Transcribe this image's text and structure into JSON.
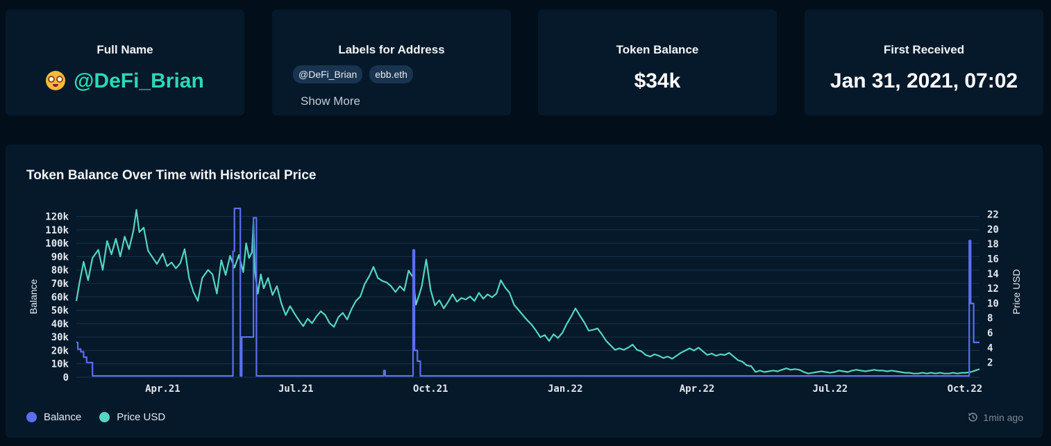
{
  "cards": {
    "full_name": {
      "title": "Full Name",
      "value": "@DeFi_Brian",
      "icon": "nerd-face-emoji-icon"
    },
    "labels": {
      "title": "Labels for Address",
      "pills": [
        "@DeFi_Brian",
        "ebb.eth"
      ],
      "show_more": "Show More"
    },
    "token_balance": {
      "title": "Token Balance",
      "value": "$34k"
    },
    "first_received": {
      "title": "First Received",
      "value": "Jan 31, 2021, 07:02"
    }
  },
  "chart_title": "Token Balance Over Time with Historical Price",
  "legend": {
    "balance": "Balance",
    "price": "Price USD"
  },
  "updated": "1min ago",
  "colors": {
    "balance": "#5b6ff0",
    "price": "#55d6c2",
    "accent": "#2bd9b7",
    "panel": "#06192a",
    "background": "#020f1b"
  },
  "chart_data": {
    "type": "line",
    "xlabel": "",
    "ylabel_left": "Balance",
    "ylabel_right": "Price USD",
    "x_ticks": [
      "Apr.21",
      "Jul.21",
      "Oct.21",
      "Jan.22",
      "Apr.22",
      "Jul.22",
      "Oct.22"
    ],
    "y_left_ticks": [
      "0",
      "10k",
      "20k",
      "30k",
      "40k",
      "50k",
      "60k",
      "70k",
      "80k",
      "90k",
      "100k",
      "110k",
      "120k"
    ],
    "y_right_ticks": [
      "2",
      "4",
      "6",
      "8",
      "10",
      "12",
      "14",
      "16",
      "18",
      "20",
      "22"
    ],
    "ylim_left": [
      0,
      126000
    ],
    "ylim_right": [
      0,
      22.8
    ],
    "grid": true,
    "series": [
      {
        "name": "Balance",
        "axis": "left",
        "step": true,
        "points": [
          [
            "2021-02-01",
            26000
          ],
          [
            "2021-02-02",
            21000
          ],
          [
            "2021-02-04",
            19000
          ],
          [
            "2021-02-06",
            15000
          ],
          [
            "2021-02-08",
            11000
          ],
          [
            "2021-02-11",
            11000
          ],
          [
            "2021-02-12",
            1000
          ],
          [
            "2021-05-18",
            1000
          ],
          [
            "2021-05-19",
            94000
          ],
          [
            "2021-05-20",
            126000
          ],
          [
            "2021-05-23",
            126000
          ],
          [
            "2021-05-24",
            1000
          ],
          [
            "2021-05-25",
            30000
          ],
          [
            "2021-06-01",
            30000
          ],
          [
            "2021-06-02",
            119000
          ],
          [
            "2021-06-03",
            119000
          ],
          [
            "2021-06-04",
            1000
          ],
          [
            "2021-08-29",
            1000
          ],
          [
            "2021-08-30",
            5000
          ],
          [
            "2021-08-31",
            1000
          ],
          [
            "2021-09-18",
            1000
          ],
          [
            "2021-09-19",
            95000
          ],
          [
            "2021-09-20",
            20000
          ],
          [
            "2021-09-22",
            12000
          ],
          [
            "2021-09-24",
            1000
          ],
          [
            "2022-10-03",
            1000
          ],
          [
            "2022-10-04",
            102000
          ],
          [
            "2022-10-05",
            55000
          ],
          [
            "2022-10-07",
            26000
          ],
          [
            "2022-10-11",
            26000
          ]
        ]
      },
      {
        "name": "Price USD",
        "axis": "right",
        "points": [
          [
            "2021-02-01",
            10.3
          ],
          [
            "2021-02-03",
            12.6
          ],
          [
            "2021-02-06",
            15.6
          ],
          [
            "2021-02-09",
            13.1
          ],
          [
            "2021-02-12",
            16.1
          ],
          [
            "2021-02-16",
            17.2
          ],
          [
            "2021-02-19",
            14.5
          ],
          [
            "2021-02-22",
            18.4
          ],
          [
            "2021-02-25",
            16.6
          ],
          [
            "2021-02-28",
            18.7
          ],
          [
            "2021-03-03",
            16.3
          ],
          [
            "2021-03-06",
            19.0
          ],
          [
            "2021-03-09",
            17.3
          ],
          [
            "2021-03-12",
            19.8
          ],
          [
            "2021-03-14",
            22.6
          ],
          [
            "2021-03-16",
            19.6
          ],
          [
            "2021-03-19",
            20.2
          ],
          [
            "2021-03-22",
            17.1
          ],
          [
            "2021-03-25",
            16.2
          ],
          [
            "2021-03-28",
            15.3
          ],
          [
            "2021-04-01",
            16.7
          ],
          [
            "2021-04-04",
            15.0
          ],
          [
            "2021-04-07",
            15.5
          ],
          [
            "2021-04-10",
            14.7
          ],
          [
            "2021-04-13",
            15.4
          ],
          [
            "2021-04-16",
            17.3
          ],
          [
            "2021-04-19",
            13.4
          ],
          [
            "2021-04-22",
            11.5
          ],
          [
            "2021-04-25",
            10.3
          ],
          [
            "2021-04-28",
            13.4
          ],
          [
            "2021-05-02",
            14.5
          ],
          [
            "2021-05-05",
            13.9
          ],
          [
            "2021-05-08",
            11.3
          ],
          [
            "2021-05-11",
            15.8
          ],
          [
            "2021-05-14",
            13.8
          ],
          [
            "2021-05-17",
            16.4
          ],
          [
            "2021-05-20",
            14.8
          ],
          [
            "2021-05-23",
            16.5
          ],
          [
            "2021-05-26",
            14.2
          ],
          [
            "2021-05-28",
            18.1
          ],
          [
            "2021-05-30",
            16.1
          ],
          [
            "2021-06-01",
            16.9
          ],
          [
            "2021-06-02",
            21.0
          ],
          [
            "2021-06-03",
            14.3
          ],
          [
            "2021-06-05",
            11.3
          ],
          [
            "2021-06-07",
            13.9
          ],
          [
            "2021-06-09",
            12.0
          ],
          [
            "2021-06-12",
            13.4
          ],
          [
            "2021-06-15",
            11.1
          ],
          [
            "2021-06-18",
            12.3
          ],
          [
            "2021-06-21",
            10.0
          ],
          [
            "2021-06-24",
            8.4
          ],
          [
            "2021-06-27",
            9.6
          ],
          [
            "2021-06-30",
            8.6
          ],
          [
            "2021-07-03",
            7.7
          ],
          [
            "2021-07-06",
            6.9
          ],
          [
            "2021-07-09",
            7.9
          ],
          [
            "2021-07-12",
            7.3
          ],
          [
            "2021-07-15",
            8.2
          ],
          [
            "2021-07-18",
            8.9
          ],
          [
            "2021-07-21",
            8.4
          ],
          [
            "2021-07-24",
            7.3
          ],
          [
            "2021-07-27",
            6.8
          ],
          [
            "2021-07-30",
            8.1
          ],
          [
            "2021-08-02",
            8.7
          ],
          [
            "2021-08-05",
            7.8
          ],
          [
            "2021-08-08",
            9.2
          ],
          [
            "2021-08-11",
            10.3
          ],
          [
            "2021-08-14",
            10.9
          ],
          [
            "2021-08-17",
            12.6
          ],
          [
            "2021-08-20",
            13.6
          ],
          [
            "2021-08-23",
            14.9
          ],
          [
            "2021-08-26",
            13.4
          ],
          [
            "2021-08-29",
            13.0
          ],
          [
            "2021-09-01",
            12.8
          ],
          [
            "2021-09-04",
            12.3
          ],
          [
            "2021-09-07",
            11.5
          ],
          [
            "2021-09-10",
            12.3
          ],
          [
            "2021-09-13",
            11.7
          ],
          [
            "2021-09-16",
            14.4
          ],
          [
            "2021-09-19",
            13.5
          ],
          [
            "2021-09-21",
            9.8
          ],
          [
            "2021-09-23",
            11.0
          ],
          [
            "2021-09-25",
            12.3
          ],
          [
            "2021-09-28",
            15.9
          ],
          [
            "2021-10-01",
            11.8
          ],
          [
            "2021-10-04",
            9.7
          ],
          [
            "2021-10-07",
            10.4
          ],
          [
            "2021-10-10",
            9.3
          ],
          [
            "2021-10-13",
            10.2
          ],
          [
            "2021-10-16",
            11.2
          ],
          [
            "2021-10-19",
            10.2
          ],
          [
            "2021-10-22",
            10.7
          ],
          [
            "2021-10-25",
            10.5
          ],
          [
            "2021-10-28",
            10.9
          ],
          [
            "2021-10-31",
            10.3
          ],
          [
            "2021-11-03",
            11.4
          ],
          [
            "2021-11-06",
            10.6
          ],
          [
            "2021-11-09",
            11.2
          ],
          [
            "2021-11-12",
            10.8
          ],
          [
            "2021-11-15",
            11.3
          ],
          [
            "2021-11-18",
            13.1
          ],
          [
            "2021-11-21",
            12.1
          ],
          [
            "2021-11-24",
            11.4
          ],
          [
            "2021-11-27",
            9.8
          ],
          [
            "2021-11-30",
            9.1
          ],
          [
            "2021-12-03",
            8.4
          ],
          [
            "2021-12-06",
            7.7
          ],
          [
            "2021-12-09",
            7.1
          ],
          [
            "2021-12-12",
            6.3
          ],
          [
            "2021-12-15",
            5.4
          ],
          [
            "2021-12-18",
            5.7
          ],
          [
            "2021-12-21",
            4.9
          ],
          [
            "2021-12-24",
            5.8
          ],
          [
            "2021-12-27",
            5.3
          ],
          [
            "2021-12-30",
            6.0
          ],
          [
            "2022-01-02",
            7.2
          ],
          [
            "2022-01-05",
            8.2
          ],
          [
            "2022-01-08",
            9.3
          ],
          [
            "2022-01-11",
            8.3
          ],
          [
            "2022-01-14",
            7.4
          ],
          [
            "2022-01-17",
            6.3
          ],
          [
            "2022-01-20",
            6.4
          ],
          [
            "2022-01-23",
            6.6
          ],
          [
            "2022-01-26",
            5.8
          ],
          [
            "2022-01-29",
            4.9
          ],
          [
            "2022-02-01",
            4.3
          ],
          [
            "2022-02-04",
            3.7
          ],
          [
            "2022-02-07",
            3.9
          ],
          [
            "2022-02-10",
            3.7
          ],
          [
            "2022-02-13",
            4.0
          ],
          [
            "2022-02-16",
            4.4
          ],
          [
            "2022-02-19",
            3.7
          ],
          [
            "2022-02-22",
            3.5
          ],
          [
            "2022-02-25",
            3.0
          ],
          [
            "2022-02-28",
            2.8
          ],
          [
            "2022-03-03",
            3.1
          ],
          [
            "2022-03-06",
            2.9
          ],
          [
            "2022-03-09",
            2.6
          ],
          [
            "2022-03-12",
            2.8
          ],
          [
            "2022-03-15",
            2.5
          ],
          [
            "2022-03-18",
            2.9
          ],
          [
            "2022-03-21",
            3.3
          ],
          [
            "2022-03-24",
            3.6
          ],
          [
            "2022-03-27",
            3.9
          ],
          [
            "2022-03-30",
            3.6
          ],
          [
            "2022-04-02",
            4.0
          ],
          [
            "2022-04-05",
            3.5
          ],
          [
            "2022-04-08",
            3.0
          ],
          [
            "2022-04-11",
            3.2
          ],
          [
            "2022-04-14",
            2.9
          ],
          [
            "2022-04-17",
            3.1
          ],
          [
            "2022-04-20",
            3.0
          ],
          [
            "2022-04-23",
            3.3
          ],
          [
            "2022-04-26",
            2.8
          ],
          [
            "2022-04-29",
            2.3
          ],
          [
            "2022-05-02",
            2.1
          ],
          [
            "2022-05-05",
            1.6
          ],
          [
            "2022-05-08",
            1.5
          ],
          [
            "2022-05-11",
            0.7
          ],
          [
            "2022-05-14",
            0.9
          ],
          [
            "2022-05-17",
            0.7
          ],
          [
            "2022-05-20",
            0.8
          ],
          [
            "2022-05-23",
            0.9
          ],
          [
            "2022-05-26",
            0.8
          ],
          [
            "2022-05-29",
            1.0
          ],
          [
            "2022-06-01",
            1.2
          ],
          [
            "2022-06-04",
            1.0
          ],
          [
            "2022-06-07",
            1.1
          ],
          [
            "2022-06-10",
            1.0
          ],
          [
            "2022-06-13",
            0.7
          ],
          [
            "2022-06-16",
            0.5
          ],
          [
            "2022-06-19",
            0.6
          ],
          [
            "2022-06-22",
            0.7
          ],
          [
            "2022-06-25",
            0.8
          ],
          [
            "2022-06-28",
            0.7
          ],
          [
            "2022-07-01",
            0.6
          ],
          [
            "2022-07-04",
            0.7
          ],
          [
            "2022-07-07",
            0.9
          ],
          [
            "2022-07-10",
            0.8
          ],
          [
            "2022-07-13",
            0.7
          ],
          [
            "2022-07-16",
            0.9
          ],
          [
            "2022-07-19",
            1.0
          ],
          [
            "2022-07-22",
            0.9
          ],
          [
            "2022-07-25",
            0.8
          ],
          [
            "2022-07-28",
            0.9
          ],
          [
            "2022-07-31",
            1.0
          ],
          [
            "2022-08-03",
            0.9
          ],
          [
            "2022-08-06",
            0.9
          ],
          [
            "2022-08-09",
            0.8
          ],
          [
            "2022-08-12",
            0.9
          ],
          [
            "2022-08-15",
            0.8
          ],
          [
            "2022-08-18",
            0.7
          ],
          [
            "2022-08-21",
            0.6
          ],
          [
            "2022-08-24",
            0.6
          ],
          [
            "2022-08-27",
            0.5
          ],
          [
            "2022-08-30",
            0.5
          ],
          [
            "2022-09-02",
            0.6
          ],
          [
            "2022-09-05",
            0.5
          ],
          [
            "2022-09-08",
            0.6
          ],
          [
            "2022-09-11",
            0.5
          ],
          [
            "2022-09-14",
            0.6
          ],
          [
            "2022-09-17",
            0.5
          ],
          [
            "2022-09-20",
            0.5
          ],
          [
            "2022-09-23",
            0.6
          ],
          [
            "2022-09-26",
            0.5
          ],
          [
            "2022-09-29",
            0.6
          ],
          [
            "2022-10-02",
            0.6
          ],
          [
            "2022-10-05",
            0.7
          ],
          [
            "2022-10-08",
            0.9
          ],
          [
            "2022-10-11",
            1.1
          ]
        ]
      }
    ]
  }
}
